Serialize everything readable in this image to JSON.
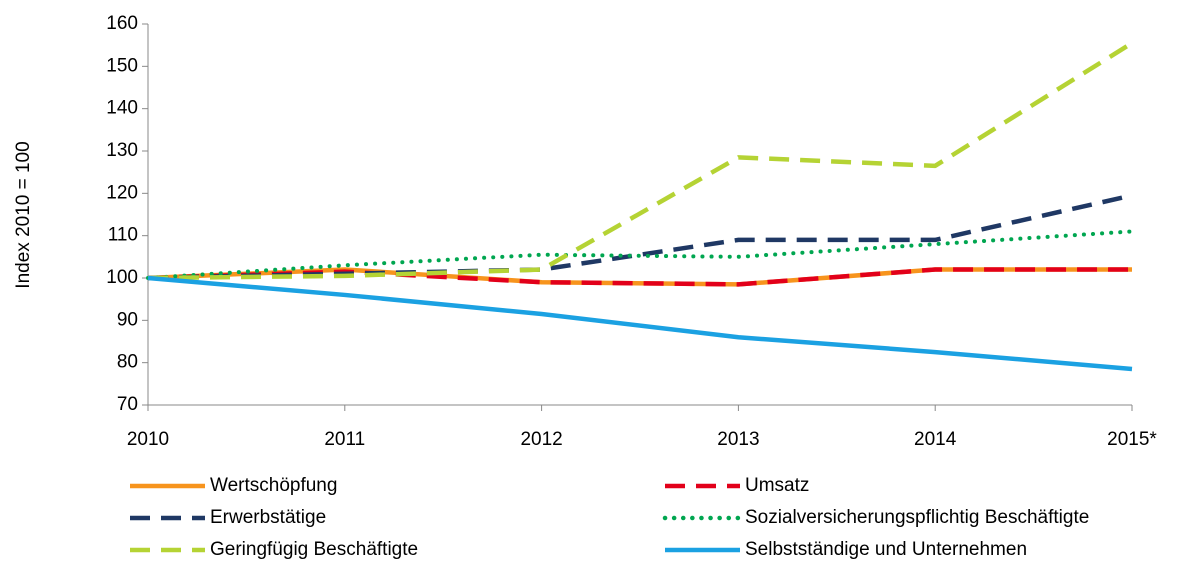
{
  "chart_data": {
    "type": "line",
    "y_label": "Index  2010  = 100",
    "categories": [
      "2010",
      "2011",
      "2012",
      "2013",
      "2014",
      "2015*"
    ],
    "series": [
      {
        "name": "Wertschöpfung",
        "color": "#f7941d",
        "style": "solid",
        "values": [
          100,
          102,
          99,
          98.5,
          102,
          102
        ]
      },
      {
        "name": "Umsatz",
        "color": "#e2001a",
        "style": "dashed",
        "values": [
          100,
          101.5,
          99,
          98.5,
          102,
          102
        ]
      },
      {
        "name": "Erwerbstätige",
        "color": "#1f3864",
        "style": "dashed",
        "values": [
          100,
          101,
          102,
          109,
          109,
          119.5
        ]
      },
      {
        "name": "Sozialversicherungspflichtig Beschäftigte",
        "color": "#00a650",
        "style": "dotted",
        "values": [
          100,
          103,
          105.5,
          105,
          108,
          111
        ]
      },
      {
        "name": "Geringfügig Beschäftigte",
        "color": "#b5d334",
        "style": "dashed",
        "values": [
          100,
          100.5,
          102,
          128.5,
          126.5,
          155.5
        ]
      },
      {
        "name": "Selbstständige und Unternehmen",
        "color": "#1ba1e2",
        "style": "solid",
        "values": [
          100,
          96,
          91.5,
          86,
          82.5,
          78.5
        ]
      }
    ],
    "ylim": [
      70,
      160
    ],
    "yticks": [
      70,
      80,
      90,
      100,
      110,
      120,
      130,
      140,
      150,
      160
    ],
    "grid": false
  }
}
